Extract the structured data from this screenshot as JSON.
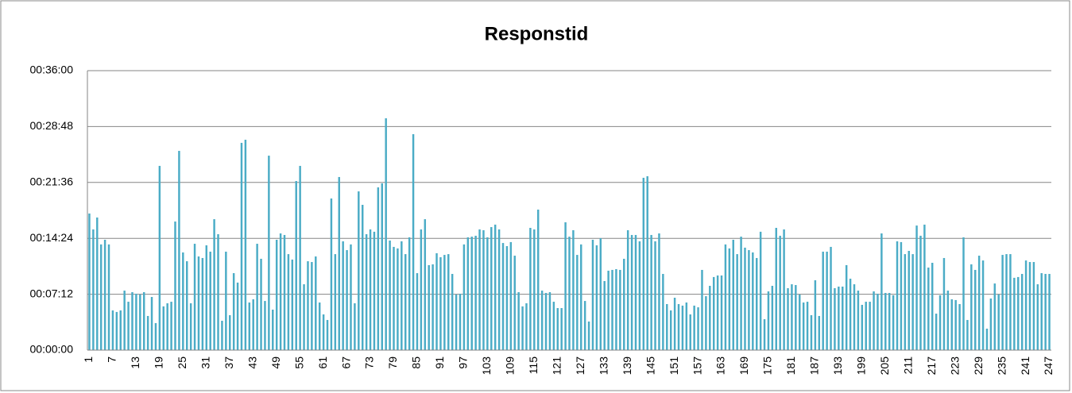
{
  "chart_data": {
    "type": "bar",
    "title": "Responstid",
    "categories": [
      1,
      null,
      null,
      null,
      null,
      null,
      7,
      null,
      null,
      null,
      null,
      null,
      13,
      null,
      null,
      null,
      null,
      null,
      19,
      null,
      null,
      null,
      null,
      null,
      25,
      null,
      null,
      null,
      null,
      null,
      31,
      null,
      null,
      null,
      null,
      null,
      37,
      null,
      null,
      null,
      null,
      null,
      43,
      null,
      null,
      null,
      null,
      null,
      49,
      null,
      null,
      null,
      null,
      null,
      55,
      null,
      null,
      null,
      null,
      null,
      61,
      null,
      null,
      null,
      null,
      null,
      67,
      null,
      null,
      null,
      null,
      null,
      73,
      null,
      null,
      null,
      null,
      null,
      79,
      null,
      null,
      null,
      null,
      null,
      85,
      null,
      null,
      null,
      null,
      null,
      91,
      null,
      null,
      null,
      null,
      null,
      97,
      null,
      null,
      null,
      null,
      null,
      103,
      null,
      null,
      null,
      null,
      null,
      109,
      null,
      null,
      null,
      null,
      null,
      115,
      null,
      null,
      null,
      null,
      null,
      121,
      null,
      null,
      null,
      null,
      null,
      127,
      null,
      null,
      null,
      null,
      null,
      133,
      null,
      null,
      null,
      null,
      null,
      139,
      null,
      null,
      null,
      null,
      null,
      145,
      null,
      null,
      null,
      null,
      null,
      151,
      null,
      null,
      null,
      null,
      null,
      157,
      null,
      null,
      null,
      null,
      null,
      163,
      null,
      null,
      null,
      null,
      null,
      169,
      null,
      null,
      null,
      null,
      null,
      175,
      null,
      null,
      null,
      null,
      null,
      181,
      null,
      null,
      null,
      null,
      null,
      187,
      null,
      null,
      null,
      null,
      null,
      193,
      null,
      null,
      null,
      null,
      null,
      199,
      null,
      null,
      null,
      null,
      null,
      205,
      null,
      null,
      null,
      null,
      null,
      211,
      null,
      null,
      null,
      null,
      null,
      217,
      null,
      null,
      null,
      null,
      null,
      223,
      null,
      null,
      null,
      null,
      null,
      229,
      null,
      null,
      null,
      null,
      null,
      235,
      null,
      null,
      null,
      null,
      null,
      241,
      null,
      null,
      null,
      null,
      null,
      247
    ],
    "values": [
      1056,
      933,
      1025,
      817,
      853,
      817,
      307,
      295,
      307,
      460,
      374,
      448,
      436,
      430,
      448,
      264,
      411,
      209,
      1424,
      338,
      362,
      374,
      994,
      1540,
      755,
      687,
      362,
      822,
      724,
      712,
      810,
      761,
      1012,
      896,
      227,
      761,
      270,
      595,
      522,
      1602,
      1626,
      368,
      393,
      822,
      706,
      380,
      1503,
      313,
      853,
      902,
      890,
      742,
      700,
      1307,
      1424,
      509,
      687,
      681,
      724,
      368,
      276,
      233,
      1172,
      742,
      1338,
      841,
      773,
      817,
      362,
      1227,
      1123,
      896,
      933,
      915,
      1258,
      1289,
      1792,
      847,
      798,
      786,
      841,
      742,
      872,
      1669,
      595,
      933,
      1012,
      657,
      663,
      749,
      718,
      736,
      742,
      589,
      430,
      436,
      817,
      872,
      877,
      884,
      933,
      927,
      872,
      951,
      970,
      933,
      828,
      804,
      835,
      730,
      448,
      338,
      362,
      945,
      933,
      1086,
      460,
      442,
      448,
      374,
      325,
      325,
      988,
      877,
      927,
      736,
      817,
      380,
      221,
      853,
      810,
      865,
      534,
      614,
      620,
      626,
      620,
      706,
      927,
      890,
      890,
      841,
      1332,
      1344,
      890,
      841,
      902,
      589,
      356,
      307,
      405,
      356,
      344,
      368,
      276,
      344,
      331,
      620,
      417,
      497,
      565,
      577,
      577,
      817,
      786,
      853,
      742,
      877,
      792,
      773,
      755,
      712,
      915,
      239,
      454,
      497,
      945,
      884,
      933,
      479,
      509,
      503,
      430,
      368,
      374,
      270,
      540,
      264,
      761,
      761,
      798,
      479,
      491,
      491,
      657,
      552,
      509,
      460,
      350,
      374,
      374,
      454,
      436,
      902,
      442,
      442,
      424,
      841,
      835,
      742,
      767,
      742,
      963,
      884,
      970,
      638,
      675,
      282,
      424,
      712,
      460,
      393,
      387,
      356,
      872,
      233,
      663,
      620,
      730,
      693,
      166,
      399,
      515,
      430,
      736,
      742,
      742,
      559,
      565,
      589,
      693,
      681,
      681,
      509,
      595,
      589,
      589
    ],
    "color": "#4bacc6",
    "ylim": [
      0,
      2160
    ],
    "yticks": [
      {
        "value": 0,
        "label": "00:00:00"
      },
      {
        "value": 432,
        "label": "00:07:12"
      },
      {
        "value": 864,
        "label": "00:14:24"
      },
      {
        "value": 1296,
        "label": "00:21:36"
      },
      {
        "value": 1728,
        "label": "00:28:48"
      },
      {
        "value": 2160,
        "label": "00:36:00"
      }
    ],
    "grid": true
  }
}
